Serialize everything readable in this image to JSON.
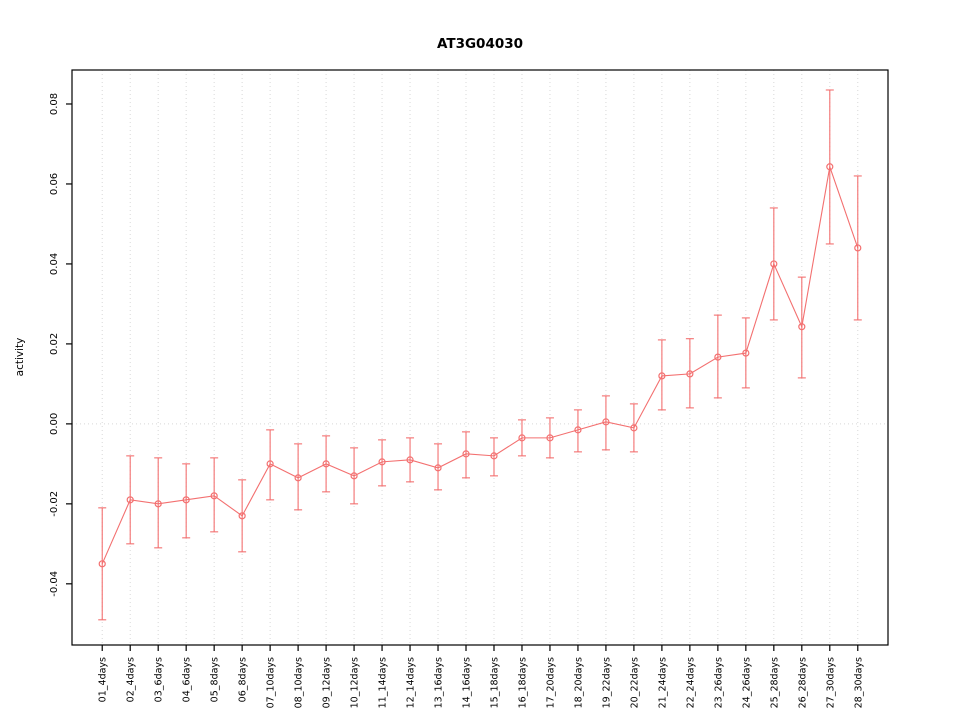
{
  "chart_data": {
    "type": "line",
    "title": "AT3G04030",
    "xlabel": "",
    "ylabel": "activity",
    "grid": true,
    "legend": "none",
    "point_style": "open-circle",
    "series_color": "#f37070",
    "grid_color": "#d8d8d8",
    "ylim": [
      -0.0553,
      0.0885
    ],
    "ytick_values": [
      -0.04,
      -0.02,
      0.0,
      0.02,
      0.04,
      0.06,
      0.08
    ],
    "ytick_labels": [
      "-0.04",
      "-0.02",
      "0.00",
      "0.02",
      "0.04",
      "0.06",
      "0.08"
    ],
    "zero_line": 0.0,
    "categories": [
      "01_4days",
      "02_4days",
      "03_6days",
      "04_6days",
      "05_8days",
      "06_8days",
      "07_10days",
      "08_10days",
      "09_12days",
      "10_12days",
      "11_14days",
      "12_14days",
      "13_16days",
      "14_16days",
      "15_18days",
      "16_18days",
      "17_20days",
      "18_20days",
      "19_22days",
      "20_22days",
      "21_24days",
      "22_24days",
      "23_26days",
      "24_26days",
      "25_28days",
      "26_28days",
      "27_30days",
      "28_30days"
    ],
    "series": [
      {
        "name": "activity",
        "values": [
          -0.035,
          -0.019,
          -0.02,
          -0.019,
          -0.018,
          -0.023,
          -0.01,
          -0.0135,
          -0.01,
          -0.013,
          -0.0095,
          -0.009,
          -0.011,
          -0.0075,
          -0.008,
          -0.0035,
          -0.0035,
          -0.0015,
          0.0005,
          -0.001,
          0.012,
          0.0125,
          0.0167,
          0.0177,
          0.04,
          0.0243,
          0.0643,
          0.044
        ],
        "error_low": [
          -0.049,
          -0.03,
          -0.031,
          -0.0285,
          -0.027,
          -0.032,
          -0.019,
          -0.0215,
          -0.017,
          -0.02,
          -0.0155,
          -0.0145,
          -0.0165,
          -0.0135,
          -0.013,
          -0.008,
          -0.0085,
          -0.007,
          -0.0065,
          -0.007,
          0.0035,
          0.004,
          0.0065,
          0.009,
          0.026,
          0.0115,
          0.045,
          0.026
        ],
        "error_high": [
          -0.021,
          -0.008,
          -0.0085,
          -0.01,
          -0.0085,
          -0.014,
          -0.0015,
          -0.005,
          -0.003,
          -0.006,
          -0.004,
          -0.0035,
          -0.005,
          -0.002,
          -0.0035,
          0.001,
          0.0015,
          0.0035,
          0.007,
          0.005,
          0.021,
          0.0213,
          0.0272,
          0.0265,
          0.054,
          0.0367,
          0.0835,
          0.062
        ]
      }
    ]
  }
}
